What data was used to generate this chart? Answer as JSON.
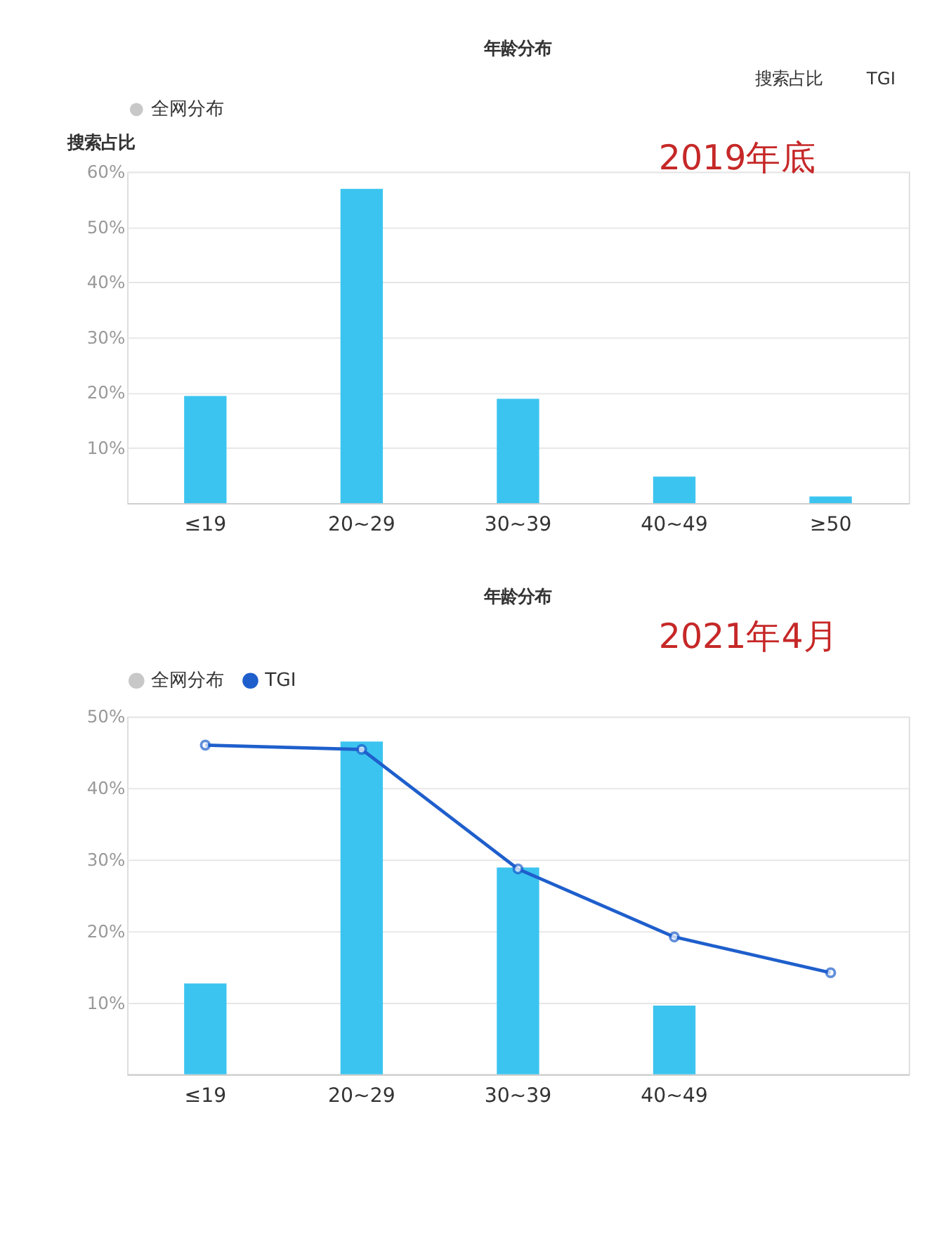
{
  "chart_data": [
    {
      "type": "bar",
      "title": "年龄分布",
      "ylabel": "搜索占比",
      "categories": [
        "≤19",
        "20~29",
        "30~39",
        "40~49",
        "≥50"
      ],
      "series": [
        {
          "color": "#3cc4f0",
          "values": [
            19.4,
            56.9,
            18.9,
            4.8,
            1.2
          ]
        },
        {
          "name": "全网分布",
          "color": "#c8c8c8",
          "values": [
            null,
            null,
            null,
            null,
            null
          ]
        }
      ],
      "ylim": [
        0,
        60
      ],
      "yticks": [
        {
          "value": 0,
          "label": null
        },
        {
          "value": 10,
          "label": "10%"
        },
        {
          "value": 20,
          "label": "20%"
        },
        {
          "value": 30,
          "label": "30%"
        },
        {
          "value": 40,
          "label": "40%"
        },
        {
          "value": 50,
          "label": "50%"
        },
        {
          "value": 60,
          "label": "60%"
        }
      ],
      "grid": "y",
      "legend": "top left",
      "annotations": [
        "2019年底",
        "搜索占比",
        "TGI"
      ]
    },
    {
      "type": "bar",
      "title": "年龄分布",
      "categories": [
        "≤19",
        "20~29",
        "30~39",
        "40~49",
        null
      ],
      "series": [
        {
          "color": "#3cc4f0",
          "values": [
            12.7,
            46.5,
            28.9,
            9.6,
            null
          ]
        },
        {
          "name": "全网分布",
          "color": "#c8c8c8",
          "values": [
            null,
            null,
            null,
            null,
            null
          ]
        },
        {
          "type": "line",
          "name": "TGI",
          "color": "#1f5fcc",
          "marker": "circle",
          "values": [
            46.0,
            45.4,
            28.7,
            19.2,
            14.2
          ]
        }
      ],
      "ylim": [
        0,
        50
      ],
      "yticks": [
        {
          "value": 0,
          "label": null
        },
        {
          "value": 10,
          "label": "10%"
        },
        {
          "value": 20,
          "label": "20%"
        },
        {
          "value": 30,
          "label": "30%"
        },
        {
          "value": 40,
          "label": "40%"
        },
        {
          "value": 50,
          "label": "50%"
        }
      ],
      "grid": "y",
      "legend": "top left",
      "annotations": [
        "2021年4月"
      ]
    }
  ]
}
